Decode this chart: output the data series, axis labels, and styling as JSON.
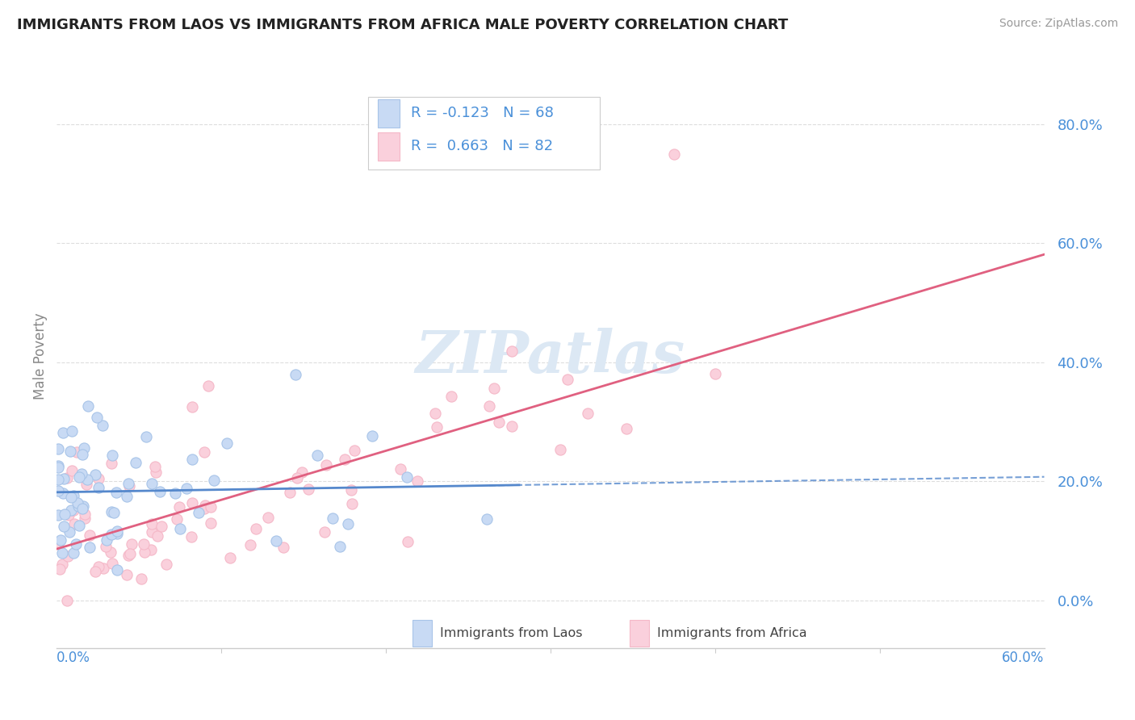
{
  "title": "IMMIGRANTS FROM LAOS VS IMMIGRANTS FROM AFRICA MALE POVERTY CORRELATION CHART",
  "source": "Source: ZipAtlas.com",
  "ylabel": "Male Poverty",
  "ytick_values": [
    0.0,
    0.2,
    0.4,
    0.6,
    0.8
  ],
  "xlim": [
    0.0,
    0.6
  ],
  "ylim": [
    -0.08,
    0.9
  ],
  "color_laos": "#a8c4e8",
  "color_africa": "#f5b8c8",
  "color_laos_fill": "#c8daf4",
  "color_africa_fill": "#fad0dc",
  "color_laos_line": "#5588cc",
  "color_africa_line": "#e06080",
  "background_color": "#ffffff",
  "watermark_color": "#dce8f4",
  "title_color": "#222222",
  "ytick_color": "#4a90d9",
  "source_color": "#999999",
  "grid_color": "#dddddd",
  "spine_color": "#cccccc",
  "ylabel_color": "#888888",
  "legend_border_color": "#cccccc",
  "bottom_legend_text_color": "#444444",
  "laos_line_intercept": 0.19,
  "laos_line_slope": -0.058,
  "africa_line_intercept": 0.09,
  "africa_line_slope": 0.8
}
